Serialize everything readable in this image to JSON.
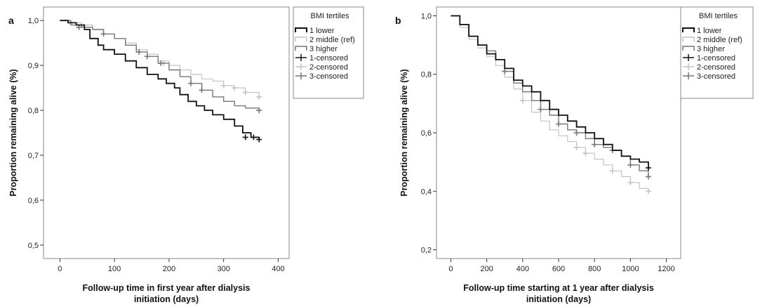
{
  "colors": {
    "lower": "#111111",
    "middle": "#c4c4c4",
    "higher": "#777777",
    "frame": "#888888"
  },
  "chart_data": [
    {
      "panel": "a",
      "type": "line",
      "subtype": "kaplan-meier step curves",
      "xlabel_lines": [
        "Follow-up time in first year after dialysis",
        "initiation (days)"
      ],
      "ylabel": "Proportion remaining alive (%)",
      "xlim": [
        -30,
        420
      ],
      "ylim": [
        0.47,
        1.03
      ],
      "xticks": [
        0,
        100,
        200,
        300,
        400
      ],
      "xtick_labels": [
        "0",
        "100",
        "200",
        "300",
        "400"
      ],
      "yticks": [
        0.5,
        0.6,
        0.7,
        0.8,
        0.9,
        1.0
      ],
      "ytick_labels": [
        "0,5",
        "0,6",
        "0,7",
        "0,8",
        "0,9",
        "1,0"
      ],
      "legend": {
        "title": "BMI tertiles",
        "entries": [
          "1 lower",
          "2 middle (ref)",
          "3 higher",
          "1-censored",
          "2-censored",
          "3-censored"
        ]
      },
      "series": [
        {
          "name": "1 lower",
          "color_key": "lower",
          "x": [
            0,
            15,
            30,
            45,
            55,
            70,
            80,
            100,
            120,
            140,
            160,
            180,
            195,
            210,
            220,
            235,
            250,
            265,
            280,
            300,
            320,
            335,
            350,
            365
          ],
          "y": [
            1.0,
            0.995,
            0.99,
            0.98,
            0.96,
            0.945,
            0.935,
            0.925,
            0.91,
            0.895,
            0.88,
            0.87,
            0.86,
            0.85,
            0.835,
            0.82,
            0.81,
            0.8,
            0.79,
            0.78,
            0.765,
            0.75,
            0.74,
            0.735
          ],
          "censored_x": [
            340,
            355,
            365
          ],
          "censored_y": [
            0.74,
            0.74,
            0.735
          ]
        },
        {
          "name": "2 middle (ref)",
          "color_key": "middle",
          "x": [
            0,
            20,
            40,
            60,
            80,
            100,
            120,
            140,
            160,
            180,
            200,
            220,
            240,
            260,
            280,
            300,
            320,
            340,
            365
          ],
          "y": [
            1.0,
            0.995,
            0.99,
            0.98,
            0.97,
            0.96,
            0.95,
            0.935,
            0.925,
            0.91,
            0.9,
            0.89,
            0.88,
            0.87,
            0.865,
            0.855,
            0.85,
            0.84,
            0.83
          ],
          "censored_x": [
            190,
            300,
            320,
            340,
            365
          ],
          "censored_y": [
            0.905,
            0.855,
            0.85,
            0.84,
            0.83
          ],
          "stroke_width": 1.2
        },
        {
          "name": "3 higher",
          "color_key": "higher",
          "x": [
            0,
            20,
            40,
            60,
            80,
            100,
            120,
            140,
            160,
            180,
            200,
            220,
            240,
            260,
            280,
            300,
            320,
            340,
            365
          ],
          "y": [
            1.0,
            0.99,
            0.985,
            0.98,
            0.97,
            0.96,
            0.945,
            0.93,
            0.92,
            0.905,
            0.89,
            0.875,
            0.86,
            0.845,
            0.83,
            0.82,
            0.81,
            0.805,
            0.8
          ],
          "censored_x": [
            35,
            80,
            145,
            160,
            185,
            240,
            260,
            365
          ],
          "censored_y": [
            0.985,
            0.97,
            0.93,
            0.92,
            0.905,
            0.86,
            0.845,
            0.8
          ]
        }
      ]
    },
    {
      "panel": "b",
      "type": "line",
      "subtype": "kaplan-meier step curves",
      "xlabel_lines": [
        "Follow-up time starting at 1 year after dialysis",
        "initiation (days)"
      ],
      "ylabel": "Proportion remaining alive (%)",
      "xlim": [
        -80,
        1280
      ],
      "ylim": [
        0.17,
        1.03
      ],
      "xticks": [
        0,
        200,
        400,
        600,
        800,
        1000,
        1200
      ],
      "xtick_labels": [
        "0",
        "200",
        "400",
        "600",
        "800",
        "1000",
        "1200"
      ],
      "yticks": [
        0.2,
        0.4,
        0.6,
        0.8,
        1.0
      ],
      "ytick_labels": [
        "0,2",
        "0,4",
        "0,6",
        "0,8",
        "1,0"
      ],
      "legend": {
        "title": "BMI tertiles",
        "entries": [
          "1 lower",
          "2 middle (ref)",
          "3 higher",
          "1-censored",
          "2-censored",
          "3-censored"
        ]
      },
      "series": [
        {
          "name": "1 lower",
          "color_key": "lower",
          "x": [
            0,
            50,
            100,
            150,
            200,
            250,
            300,
            350,
            400,
            450,
            500,
            550,
            600,
            650,
            700,
            750,
            800,
            850,
            900,
            950,
            1000,
            1050,
            1100
          ],
          "y": [
            1.0,
            0.97,
            0.93,
            0.9,
            0.87,
            0.85,
            0.82,
            0.78,
            0.76,
            0.74,
            0.71,
            0.68,
            0.66,
            0.64,
            0.62,
            0.6,
            0.58,
            0.56,
            0.54,
            0.52,
            0.51,
            0.5,
            0.48
          ],
          "censored_x": [
            1100
          ],
          "censored_y": [
            0.48
          ]
        },
        {
          "name": "2 middle (ref)",
          "color_key": "middle",
          "x": [
            0,
            50,
            100,
            150,
            200,
            250,
            300,
            350,
            400,
            450,
            500,
            550,
            600,
            650,
            700,
            750,
            800,
            850,
            900,
            950,
            1000,
            1050,
            1100
          ],
          "y": [
            1.0,
            0.96,
            0.92,
            0.89,
            0.86,
            0.83,
            0.79,
            0.75,
            0.71,
            0.67,
            0.64,
            0.61,
            0.59,
            0.57,
            0.55,
            0.53,
            0.51,
            0.49,
            0.47,
            0.45,
            0.43,
            0.41,
            0.4
          ],
          "censored_x": [
            400,
            700,
            750,
            900,
            1000,
            1100
          ],
          "censored_y": [
            0.71,
            0.55,
            0.53,
            0.47,
            0.43,
            0.4
          ],
          "stroke_width": 1.2
        },
        {
          "name": "3 higher",
          "color_key": "higher",
          "x": [
            0,
            50,
            100,
            150,
            200,
            250,
            300,
            350,
            400,
            450,
            500,
            550,
            600,
            650,
            700,
            750,
            800,
            850,
            900,
            950,
            1000,
            1050,
            1100
          ],
          "y": [
            1.0,
            0.97,
            0.93,
            0.9,
            0.88,
            0.85,
            0.81,
            0.77,
            0.74,
            0.71,
            0.68,
            0.66,
            0.63,
            0.61,
            0.6,
            0.58,
            0.56,
            0.55,
            0.54,
            0.52,
            0.49,
            0.47,
            0.45
          ],
          "censored_x": [
            300,
            500,
            600,
            700,
            800,
            900,
            1000,
            1100
          ],
          "censored_y": [
            0.81,
            0.68,
            0.63,
            0.6,
            0.56,
            0.54,
            0.49,
            0.45
          ]
        }
      ]
    }
  ]
}
